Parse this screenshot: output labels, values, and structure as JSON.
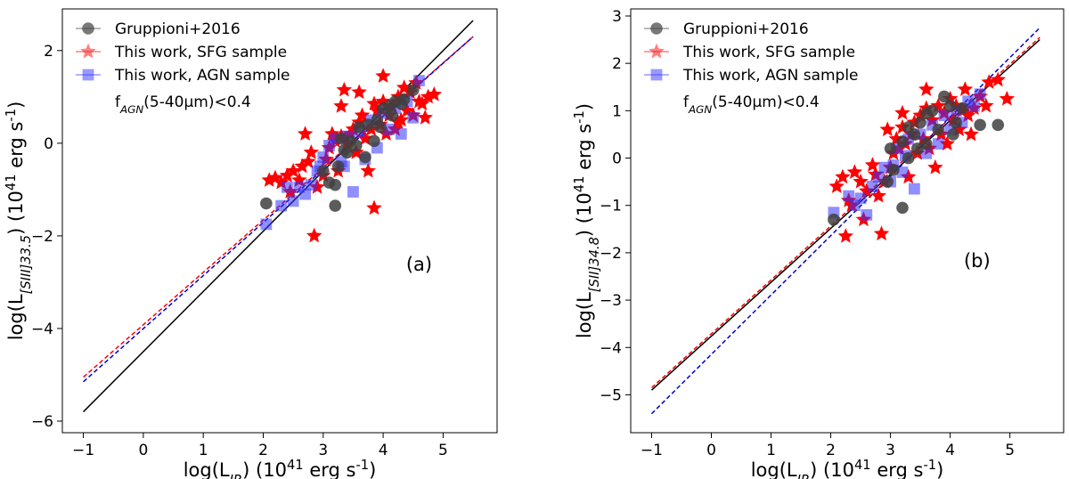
{
  "chart_data": [
    {
      "type": "scatter",
      "panel_label": "(a)",
      "xlabel": "log(L_IR) (10^41 erg s^-1)",
      "ylabel": "log(L_[SIII]33.5) (10^41 erg s^-1)",
      "xlim": [
        -1.35,
        5.9
      ],
      "ylim": [
        -6.25,
        2.9
      ],
      "xticks": [
        -1,
        0,
        1,
        2,
        3,
        4,
        5
      ],
      "yticks": [
        -6,
        -4,
        -2,
        0,
        2
      ],
      "grid": false,
      "legend_position": "upper-left",
      "annotation": "f_AGN(5-40µm)<0.4",
      "series": [
        {
          "name": "Gruppioni+2016",
          "marker": "circle",
          "color": "#404040",
          "points": [
            [
              2.05,
              -1.3
            ],
            [
              3.2,
              -1.35
            ],
            [
              3.0,
              -0.6
            ],
            [
              3.25,
              -0.5
            ],
            [
              3.1,
              -0.85
            ],
            [
              3.3,
              0.1
            ],
            [
              3.45,
              0.05
            ],
            [
              3.4,
              -0.2
            ],
            [
              3.55,
              -0.05
            ],
            [
              3.6,
              0.35
            ],
            [
              3.75,
              0.4
            ],
            [
              3.85,
              0.05
            ],
            [
              3.9,
              0.5
            ],
            [
              4.0,
              0.75
            ],
            [
              4.1,
              0.8
            ],
            [
              4.2,
              0.9
            ],
            [
              4.3,
              0.85
            ],
            [
              4.35,
              0.95
            ],
            [
              4.5,
              1.15
            ],
            [
              3.7,
              -0.3
            ],
            [
              3.2,
              -0.9
            ],
            [
              3.35,
              -0.15
            ],
            [
              3.95,
              0.35
            ],
            [
              4.15,
              0.6
            ]
          ]
        },
        {
          "name": "This work, SFG sample",
          "marker": "star",
          "color": "#ff0000",
          "points": [
            [
              2.1,
              -0.8
            ],
            [
              2.2,
              -0.75
            ],
            [
              2.3,
              -0.85
            ],
            [
              2.4,
              -0.7
            ],
            [
              2.5,
              -0.6
            ],
            [
              2.6,
              -0.8
            ],
            [
              2.7,
              0.2
            ],
            [
              2.75,
              -0.4
            ],
            [
              2.8,
              -0.2
            ],
            [
              2.85,
              -2.0
            ],
            [
              2.9,
              -0.95
            ],
            [
              3.0,
              -0.7
            ],
            [
              3.05,
              -0.35
            ],
            [
              3.1,
              -0.1
            ],
            [
              3.15,
              0.2
            ],
            [
              3.2,
              0.05
            ],
            [
              3.25,
              -0.6
            ],
            [
              3.3,
              0.15
            ],
            [
              3.35,
              1.15
            ],
            [
              3.4,
              0.0
            ],
            [
              3.45,
              0.2
            ],
            [
              3.5,
              0.3
            ],
            [
              3.55,
              -0.2
            ],
            [
              3.6,
              0.45
            ],
            [
              3.65,
              0.6
            ],
            [
              3.7,
              0.1
            ],
            [
              3.75,
              -0.6
            ],
            [
              3.8,
              0.3
            ],
            [
              3.85,
              -1.4
            ],
            [
              3.9,
              0.7
            ],
            [
              3.95,
              0.4
            ],
            [
              4.0,
              0.9
            ],
            [
              4.05,
              0.2
            ],
            [
              4.1,
              0.6
            ],
            [
              4.15,
              0.8
            ],
            [
              4.2,
              0.3
            ],
            [
              4.25,
              1.0
            ],
            [
              4.3,
              0.5
            ],
            [
              4.35,
              1.2
            ],
            [
              4.4,
              0.7
            ],
            [
              4.45,
              1.1
            ],
            [
              4.5,
              0.6
            ],
            [
              4.55,
              1.3
            ],
            [
              4.6,
              0.9
            ],
            [
              4.7,
              0.55
            ],
            [
              4.75,
              1.0
            ],
            [
              4.85,
              1.05
            ],
            [
              3.6,
              1.1
            ],
            [
              4.0,
              1.45
            ],
            [
              3.3,
              0.8
            ],
            [
              2.45,
              -1.05
            ],
            [
              2.65,
              -0.5
            ],
            [
              3.85,
              0.85
            ],
            [
              4.25,
              0.45
            ],
            [
              4.65,
              0.85
            ]
          ]
        },
        {
          "name": "This work, AGN sample",
          "marker": "square",
          "color": "#3333ff",
          "points": [
            [
              2.05,
              -1.75
            ],
            [
              2.3,
              -1.35
            ],
            [
              2.5,
              -1.25
            ],
            [
              2.6,
              -0.95
            ],
            [
              2.7,
              -1.1
            ],
            [
              2.8,
              -0.9
            ],
            [
              2.9,
              -0.6
            ],
            [
              3.0,
              -0.3
            ],
            [
              3.1,
              -0.05
            ],
            [
              3.2,
              0.1
            ],
            [
              3.3,
              -0.4
            ],
            [
              3.4,
              0.15
            ],
            [
              3.5,
              -1.05
            ],
            [
              3.6,
              0.25
            ],
            [
              3.7,
              -0.35
            ],
            [
              3.8,
              0.5
            ],
            [
              3.9,
              -0.1
            ],
            [
              4.0,
              0.65
            ],
            [
              4.1,
              0.3
            ],
            [
              4.2,
              0.75
            ],
            [
              4.3,
              0.2
            ],
            [
              4.4,
              0.9
            ],
            [
              4.5,
              0.55
            ],
            [
              4.6,
              1.35
            ],
            [
              2.4,
              -0.95
            ],
            [
              2.95,
              -0.5
            ],
            [
              3.35,
              -0.5
            ]
          ]
        }
      ],
      "fits": [
        {
          "color": "#000000",
          "style": "solid",
          "x": [
            -1,
            5.5
          ],
          "y": [
            -5.8,
            2.65
          ]
        },
        {
          "color": "#ff0000",
          "style": "dashed",
          "x": [
            -1,
            5.5
          ],
          "y": [
            -5.05,
            2.3
          ]
        },
        {
          "color": "#0000cc",
          "style": "dashed",
          "x": [
            -1,
            5.5
          ],
          "y": [
            -5.15,
            2.3
          ]
        }
      ]
    },
    {
      "type": "scatter",
      "panel_label": "(b)",
      "xlabel": "log(L_IR) (10^41 erg s^-1)",
      "ylabel": "log(L_[SII]34.8) (10^41 erg s^-1)",
      "xlim": [
        -1.35,
        5.9
      ],
      "ylim": [
        -5.8,
        3.15
      ],
      "xticks": [
        -1,
        0,
        1,
        2,
        3,
        4,
        5
      ],
      "yticks": [
        -5,
        -4,
        -3,
        -2,
        -1,
        0,
        1,
        2,
        3
      ],
      "grid": false,
      "legend_position": "upper-left",
      "annotation": "f_AGN(5-40µm)<0.4",
      "series": [
        {
          "name": "Gruppioni+2016",
          "marker": "circle",
          "color": "#404040",
          "points": [
            [
              2.05,
              -1.3
            ],
            [
              3.2,
              -1.05
            ],
            [
              2.95,
              -0.5
            ],
            [
              3.0,
              0.2
            ],
            [
              3.05,
              -0.25
            ],
            [
              3.2,
              0.35
            ],
            [
              3.3,
              0.65
            ],
            [
              3.4,
              0.5
            ],
            [
              3.5,
              0.75
            ],
            [
              3.6,
              0.95
            ],
            [
              3.7,
              1.0
            ],
            [
              3.8,
              0.6
            ],
            [
              3.9,
              1.3
            ],
            [
              4.0,
              1.1
            ],
            [
              4.1,
              0.75
            ],
            [
              4.2,
              1.05
            ],
            [
              4.5,
              0.7
            ],
            [
              4.8,
              0.7
            ],
            [
              3.3,
              0.0
            ],
            [
              3.45,
              0.2
            ],
            [
              3.6,
              0.3
            ],
            [
              4.05,
              0.5
            ]
          ]
        },
        {
          "name": "This work, SFG sample",
          "marker": "star",
          "color": "#ff0000",
          "points": [
            [
              2.1,
              -0.6
            ],
            [
              2.2,
              -0.4
            ],
            [
              2.25,
              -1.65
            ],
            [
              2.3,
              -0.9
            ],
            [
              2.35,
              -1.0
            ],
            [
              2.4,
              -0.3
            ],
            [
              2.5,
              -0.5
            ],
            [
              2.55,
              -1.3
            ],
            [
              2.6,
              -0.7
            ],
            [
              2.7,
              -0.15
            ],
            [
              2.75,
              -0.35
            ],
            [
              2.8,
              -0.8
            ],
            [
              2.85,
              -1.6
            ],
            [
              2.9,
              -0.5
            ],
            [
              3.0,
              -0.2
            ],
            [
              3.05,
              0.1
            ],
            [
              3.1,
              0.4
            ],
            [
              3.15,
              0.2
            ],
            [
              3.2,
              0.65
            ],
            [
              3.25,
              0.3
            ],
            [
              3.3,
              -0.4
            ],
            [
              3.35,
              0.5
            ],
            [
              3.4,
              0.75
            ],
            [
              3.45,
              0.1
            ],
            [
              3.5,
              0.9
            ],
            [
              3.55,
              0.4
            ],
            [
              3.6,
              1.05
            ],
            [
              3.65,
              0.2
            ],
            [
              3.7,
              0.8
            ],
            [
              3.75,
              -0.2
            ],
            [
              3.8,
              1.1
            ],
            [
              3.85,
              0.5
            ],
            [
              3.9,
              0.95
            ],
            [
              3.95,
              0.3
            ],
            [
              4.0,
              1.25
            ],
            [
              4.05,
              0.8
            ],
            [
              4.1,
              1.1
            ],
            [
              4.15,
              0.6
            ],
            [
              4.2,
              1.0
            ],
            [
              4.25,
              1.45
            ],
            [
              4.3,
              0.9
            ],
            [
              4.4,
              1.05
            ],
            [
              4.5,
              1.3
            ],
            [
              4.6,
              1.1
            ],
            [
              4.65,
              1.6
            ],
            [
              4.8,
              1.65
            ],
            [
              4.95,
              1.25
            ],
            [
              3.2,
              0.95
            ],
            [
              2.95,
              0.6
            ],
            [
              3.6,
              1.45
            ],
            [
              4.35,
              0.5
            ]
          ]
        },
        {
          "name": "This work, AGN sample",
          "marker": "square",
          "color": "#3333ff",
          "points": [
            [
              2.05,
              -1.15
            ],
            [
              2.3,
              -0.8
            ],
            [
              2.4,
              -1.0
            ],
            [
              2.5,
              -0.85
            ],
            [
              2.6,
              -1.2
            ],
            [
              2.7,
              -0.6
            ],
            [
              2.8,
              -0.4
            ],
            [
              2.9,
              -0.2
            ],
            [
              3.0,
              -0.5
            ],
            [
              3.1,
              0.2
            ],
            [
              3.2,
              -0.3
            ],
            [
              3.3,
              0.4
            ],
            [
              3.4,
              -0.65
            ],
            [
              3.5,
              0.5
            ],
            [
              3.6,
              0.1
            ],
            [
              3.7,
              0.7
            ],
            [
              3.8,
              0.3
            ],
            [
              3.9,
              0.9
            ],
            [
              4.0,
              0.6
            ],
            [
              4.1,
              1.0
            ],
            [
              4.2,
              0.75
            ],
            [
              4.3,
              1.2
            ],
            [
              4.4,
              1.1
            ],
            [
              4.5,
              1.35
            ],
            [
              3.05,
              -0.15
            ],
            [
              3.25,
              0.05
            ]
          ]
        }
      ],
      "fits": [
        {
          "color": "#000000",
          "style": "solid",
          "x": [
            -1,
            5.5
          ],
          "y": [
            -4.9,
            2.5
          ]
        },
        {
          "color": "#ff0000",
          "style": "dashed",
          "x": [
            -1,
            5.5
          ],
          "y": [
            -4.85,
            2.55
          ]
        },
        {
          "color": "#0000cc",
          "style": "dashed",
          "x": [
            -1,
            5.5
          ],
          "y": [
            -5.4,
            2.75
          ]
        }
      ]
    }
  ]
}
